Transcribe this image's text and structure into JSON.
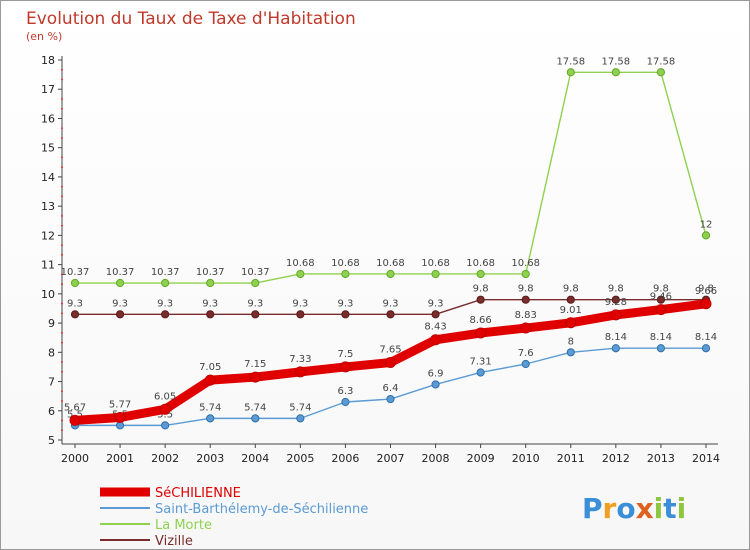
{
  "chart_data": {
    "type": "line",
    "title": "Evolution du Taux de Taxe d'Habitation",
    "subtitle": "(en %)",
    "xlabel": "",
    "ylabel": "",
    "ylim": [
      5,
      18
    ],
    "grid": false,
    "legend_position": "bottom-left",
    "x": [
      "2000",
      "2001",
      "2002",
      "2003",
      "2004",
      "2005",
      "2006",
      "2007",
      "2008",
      "2009",
      "2010",
      "2011",
      "2012",
      "2013",
      "2014"
    ],
    "y_ticks": [
      "5",
      "6",
      "7",
      "8",
      "9",
      "10",
      "11",
      "12",
      "13",
      "14",
      "15",
      "16",
      "17",
      "18"
    ],
    "series": [
      {
        "name": "SéCHILIENNE",
        "color": "#e00000",
        "values": [
          5.67,
          5.77,
          6.05,
          7.05,
          7.15,
          7.33,
          7.5,
          7.65,
          8.43,
          8.66,
          8.83,
          9.01,
          9.28,
          9.46,
          9.66
        ],
        "labels": [
          "5.67",
          "5.77",
          "6.05",
          "7.05",
          "7.15",
          "7.33",
          "7.5",
          "7.65",
          "8.43",
          "8.66",
          "8.83",
          "9.01",
          "9.28",
          "9.46",
          "9.66"
        ]
      },
      {
        "name": "Saint-Barthélemy-de-Séchilienne",
        "color": "#5b9bd5",
        "values": [
          5.5,
          5.5,
          5.5,
          5.74,
          5.74,
          5.74,
          6.3,
          6.4,
          6.9,
          7.31,
          7.6,
          8,
          8.14,
          8.14,
          8.14
        ],
        "labels": [
          "5.5",
          "5.5",
          "5.5",
          "5.74",
          "5.74",
          "5.74",
          "6.3",
          "6.4",
          "6.9",
          "7.31",
          "7.6",
          "8",
          "8.14",
          "8.14",
          "8.14"
        ]
      },
      {
        "name": "La Morte",
        "color": "#8fd14f",
        "values": [
          10.37,
          10.37,
          10.37,
          10.37,
          10.37,
          10.68,
          10.68,
          10.68,
          10.68,
          10.68,
          10.68,
          17.58,
          17.58,
          17.58,
          12
        ],
        "labels": [
          "10.37",
          "10.37",
          "10.37",
          "10.37",
          "10.37",
          "10.68",
          "10.68",
          "10.68",
          "10.68",
          "10.68",
          "10.68",
          "17.58",
          "17.58",
          "17.58",
          "12"
        ]
      },
      {
        "name": "Vizille",
        "color": "#7a2c2c",
        "values": [
          9.3,
          9.3,
          9.3,
          9.3,
          9.3,
          9.3,
          9.3,
          9.3,
          9.3,
          9.8,
          9.8,
          9.8,
          9.8,
          9.8,
          9.8
        ],
        "labels": [
          "9.3",
          "9.3",
          "9.3",
          "9.3",
          "9.3",
          "9.3",
          "9.3",
          "9.3",
          "9.3",
          "9.8",
          "9.8",
          "9.8",
          "9.8",
          "9.8",
          "9.8"
        ]
      }
    ]
  },
  "logo": {
    "text": "Proxiti",
    "letters": [
      "P",
      "r",
      "o",
      "x",
      "i",
      "t",
      "i"
    ],
    "colors": [
      "#3b8fd8",
      "#f0a020",
      "#3b8fd8",
      "#e06020",
      "#8ec63f",
      "#3b8fd8",
      "#8ec63f"
    ]
  }
}
